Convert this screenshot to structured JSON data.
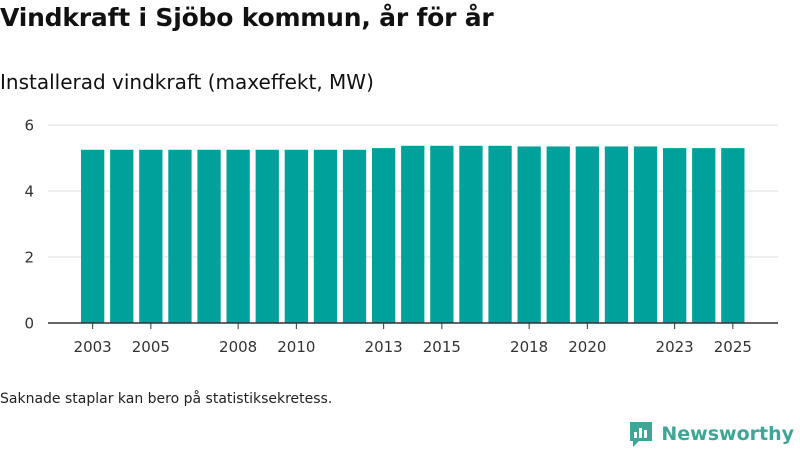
{
  "header": {
    "title": "Vindkraft i Sjöbo kommun, år för år",
    "subtitle": "Installerad vindkraft (maxeffekt, MW)"
  },
  "footer": {
    "note": "Saknade staplar kan bero på statistiksekretess.",
    "brand": "Newsworthy",
    "brand_icon": "newsworthy-logo-icon"
  },
  "colors": {
    "bar": "#00a19a",
    "grid": "#dddddd",
    "axis": "#333333",
    "brand": "#3fa596"
  },
  "chart_data": {
    "type": "bar",
    "title": "Installerad vindkraft (maxeffekt, MW)",
    "xlabel": "",
    "ylabel": "",
    "categories": [
      2003,
      2004,
      2005,
      2006,
      2007,
      2008,
      2009,
      2010,
      2011,
      2012,
      2013,
      2014,
      2015,
      2016,
      2017,
      2018,
      2019,
      2020,
      2021,
      2022,
      2023,
      2024,
      2025
    ],
    "values": [
      5.25,
      5.25,
      5.25,
      5.25,
      5.25,
      5.25,
      5.25,
      5.25,
      5.25,
      5.25,
      5.3,
      5.37,
      5.37,
      5.37,
      5.37,
      5.35,
      5.35,
      5.35,
      5.35,
      5.35,
      5.3,
      5.3,
      5.3
    ],
    "ylim": [
      0,
      6
    ],
    "yticks": [
      0,
      2,
      4,
      6
    ],
    "xtick_labels": [
      2003,
      2005,
      2008,
      2010,
      2013,
      2015,
      2018,
      2020,
      2023,
      2025
    ],
    "grid": true,
    "legend": "none"
  }
}
